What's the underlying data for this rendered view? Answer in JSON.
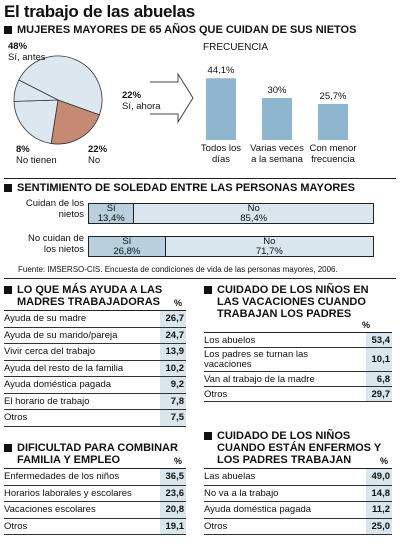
{
  "title": "El trabajo de las abuelas",
  "section1": {
    "heading": "MUJERES MAYORES DE 65 AÑOS QUE CUIDAN DE SUS NIETOS",
    "pie_labels": [
      {
        "value": "48%",
        "text": "Sí, antes"
      },
      {
        "value": "22%",
        "text": "Sí, ahora"
      },
      {
        "value": "8%",
        "text": "No tienen"
      },
      {
        "value": "22%",
        "text": "No"
      }
    ],
    "freq_label": "FRECUENCIA"
  },
  "section2": {
    "heading": "SENTIMIENTO DE SOLEDAD ENTRE LAS PERSONAS MAYORES",
    "rows": [
      {
        "label": "Cuidan de los nietos",
        "si_label": "Sí",
        "si_value": "13,4%",
        "no_label": "No",
        "no_value": "85,4%"
      },
      {
        "label": "No cuidan de los nietos",
        "si_label": "Sí",
        "si_value": "26,8%",
        "no_label": "No",
        "no_value": "71,7%"
      }
    ],
    "source": "Fuente: IMSERSO-CIS. Encuesta de condiciones de vida de las personas mayores, 2006."
  },
  "table1": {
    "heading": "LO QUE MÁS AYUDA A LAS MADRES TRABAJADORAS",
    "pct": "%",
    "rows": [
      {
        "label": "Ayuda de su madre",
        "value": "26,7"
      },
      {
        "label": "Ayuda de su marido/pareja",
        "value": "24,7"
      },
      {
        "label": "Vivir cerca del trabajo",
        "value": "13,9"
      },
      {
        "label": "Ayuda del resto de la familia",
        "value": "10,2"
      },
      {
        "label": "Ayuda doméstica pagada",
        "value": "9,2"
      },
      {
        "label": "El horario de trabajo",
        "value": "7,8"
      },
      {
        "label": "Otros",
        "value": "7,5"
      }
    ]
  },
  "table2": {
    "heading": "CUIDADO DE LOS NIÑOS EN LAS VACACIONES CUANDO TRABAJAN LOS PADRES",
    "pct": "%",
    "rows": [
      {
        "label": "Los abuelos",
        "value": "53,4"
      },
      {
        "label": "Los padres se turnan las vacaciones",
        "value": "10,1"
      },
      {
        "label": "Van al trabajo de la madre",
        "value": "6,8"
      },
      {
        "label": "Otros",
        "value": "29,7"
      }
    ]
  },
  "table3": {
    "heading": "DIFICULTAD PARA COMBINAR FAMILIA Y EMPLEO",
    "pct": "%",
    "rows": [
      {
        "label": "Enfermedades de los niños",
        "value": "36,5"
      },
      {
        "label": "Horarios laborales y escolares",
        "value": "23,6"
      },
      {
        "label": "Vacaciones escolares",
        "value": "20,8"
      },
      {
        "label": "Otros",
        "value": "19,1"
      }
    ]
  },
  "table4": {
    "heading": "CUIDADO DE LOS NIÑOS CUANDO ESTÁN ENFERMOS Y LOS PADRES TRABAJAN",
    "pct": "%",
    "rows": [
      {
        "label": "Las abuelas",
        "value": "49,0"
      },
      {
        "label": "No va a la trabajo",
        "value": "14,8"
      },
      {
        "label": "Ayuda doméstica pagada",
        "value": "11,2"
      },
      {
        "label": "Otros",
        "value": "25,0"
      }
    ]
  },
  "colors": {
    "pie_main": "#dce7ef",
    "pie_highlight": "#c48a73",
    "bar": "#8fb6cf",
    "bar_light": "#d9e6ee",
    "si_fill": "#b8cfdd"
  },
  "chart_data": [
    {
      "type": "pie",
      "categories": [
        "Sí, antes",
        "Sí, ahora",
        "No tienen",
        "No"
      ],
      "values": [
        48,
        22,
        8,
        22
      ]
    },
    {
      "type": "bar",
      "title": "FRECUENCIA",
      "categories": [
        "Todos los días",
        "Varias veces a la semana",
        "Con menor frecuencia"
      ],
      "values": [
        44.1,
        30,
        25.7
      ],
      "value_labels": [
        "44,1%",
        "30%",
        "25,7%"
      ]
    }
  ]
}
